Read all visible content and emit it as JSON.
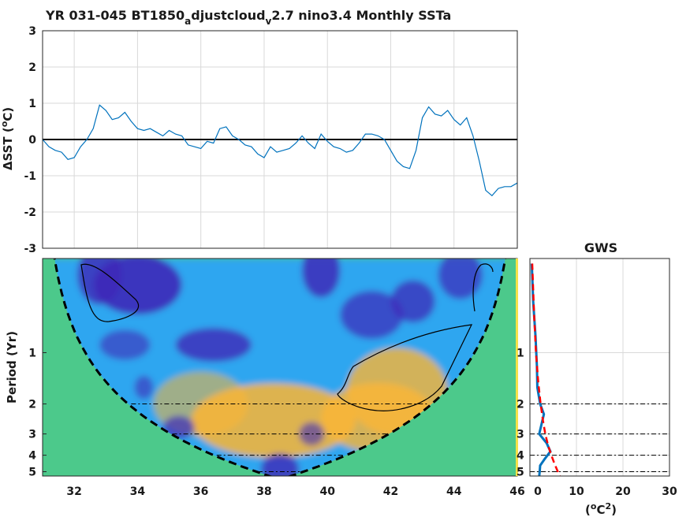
{
  "chart_data": [
    {
      "type": "line",
      "title_parts": [
        "YR 031-045 BT1850",
        "a",
        "djustcloud",
        "v",
        "2.7 nino3.4 Monthly SSTa"
      ],
      "ylabel_prefix": "ΔSST (",
      "ylabel_sup": "o",
      "ylabel_suffix": "C)",
      "xlim": [
        31,
        46
      ],
      "ylim": [
        -3,
        3
      ],
      "yticks": [
        3,
        2,
        1,
        0,
        -1,
        -2,
        -3
      ],
      "grid": true,
      "zero_line": true,
      "series": [
        {
          "color": "#0072BD",
          "x": [
            31.0,
            31.2,
            31.4,
            31.6,
            31.8,
            32.0,
            32.2,
            32.4,
            32.6,
            32.8,
            33.0,
            33.2,
            33.4,
            33.6,
            33.8,
            34.0,
            34.2,
            34.4,
            34.6,
            34.8,
            35.0,
            35.2,
            35.4,
            35.6,
            35.8,
            36.0,
            36.2,
            36.4,
            36.6,
            36.8,
            37.0,
            37.2,
            37.4,
            37.6,
            37.8,
            38.0,
            38.2,
            38.4,
            38.6,
            38.8,
            39.0,
            39.2,
            39.4,
            39.6,
            39.8,
            40.0,
            40.2,
            40.4,
            40.6,
            40.8,
            41.0,
            41.2,
            41.4,
            41.6,
            41.8,
            42.0,
            42.2,
            42.4,
            42.6,
            42.8,
            43.0,
            43.2,
            43.4,
            43.6,
            43.8,
            44.0,
            44.2,
            44.4,
            44.6,
            44.8,
            45.0,
            45.2,
            45.4,
            45.6,
            45.8,
            46.0
          ],
          "y": [
            0.0,
            -0.2,
            -0.3,
            -0.35,
            -0.55,
            -0.5,
            -0.2,
            0.0,
            0.3,
            0.95,
            0.8,
            0.55,
            0.6,
            0.75,
            0.5,
            0.3,
            0.25,
            0.3,
            0.2,
            0.1,
            0.25,
            0.15,
            0.1,
            -0.15,
            -0.2,
            -0.25,
            -0.05,
            -0.1,
            0.3,
            0.35,
            0.1,
            0.0,
            -0.15,
            -0.2,
            -0.4,
            -0.5,
            -0.2,
            -0.35,
            -0.3,
            -0.25,
            -0.1,
            0.1,
            -0.1,
            -0.25,
            0.15,
            -0.05,
            -0.2,
            -0.25,
            -0.35,
            -0.3,
            -0.1,
            0.15,
            0.15,
            0.1,
            0.0,
            -0.3,
            -0.6,
            -0.75,
            -0.8,
            -0.3,
            0.6,
            0.9,
            0.7,
            0.65,
            0.8,
            0.55,
            0.4,
            0.6,
            0.1,
            -0.6,
            -1.4,
            -1.55,
            -1.35,
            -1.3,
            -1.3,
            -1.2
          ]
        }
      ]
    },
    {
      "type": "heatmap",
      "ylabel": "Period (Yr)",
      "xlim": [
        31,
        46
      ],
      "xticks": [
        32,
        34,
        36,
        38,
        40,
        42,
        44,
        46
      ],
      "xtick_labels": [
        "32",
        "34",
        "36",
        "38",
        "40",
        "42",
        "44",
        "46"
      ],
      "yscale": "log2",
      "ylim_period": [
        0.28,
        5.3
      ],
      "yticks": [
        1,
        2,
        3,
        4,
        5
      ],
      "reference_periods": [
        2,
        3,
        4,
        5
      ],
      "colors": {
        "background": "#4cc98b",
        "low": "#3d29b8",
        "mid": "#2fa6f0",
        "high": "#fbb534"
      },
      "power_blobs": [
        {
          "x": 38.3,
          "p": 2.5,
          "sx": 2.6,
          "sp": 0.55,
          "v": 0.85
        },
        {
          "x": 42.2,
          "p": 1.7,
          "sx": 1.6,
          "sp": 0.7,
          "v": 0.8
        },
        {
          "x": 41.6,
          "p": 2.4,
          "sx": 1.8,
          "sp": 0.5,
          "v": 0.8
        },
        {
          "x": 36.0,
          "p": 2.0,
          "sx": 1.5,
          "sp": 0.45,
          "v": 0.55
        },
        {
          "x": 34.0,
          "p": 0.4,
          "sx": 1.4,
          "sp": 0.4,
          "v": -0.9
        },
        {
          "x": 32.8,
          "p": 0.35,
          "sx": 0.7,
          "sp": 0.4,
          "v": -0.8
        },
        {
          "x": 36.4,
          "p": 0.9,
          "sx": 1.2,
          "sp": 0.18,
          "v": -0.8
        },
        {
          "x": 33.6,
          "p": 0.9,
          "sx": 0.8,
          "sp": 0.15,
          "v": -0.6
        },
        {
          "x": 39.8,
          "p": 0.33,
          "sx": 0.6,
          "sp": 0.35,
          "v": -0.85
        },
        {
          "x": 41.4,
          "p": 0.6,
          "sx": 1.0,
          "sp": 0.3,
          "v": -0.7
        },
        {
          "x": 42.7,
          "p": 0.5,
          "sx": 0.7,
          "sp": 0.25,
          "v": -0.75
        },
        {
          "x": 44.2,
          "p": 0.35,
          "sx": 0.7,
          "sp": 0.3,
          "v": -0.7
        },
        {
          "x": 35.3,
          "p": 2.75,
          "sx": 0.5,
          "sp": 0.1,
          "v": -0.7
        },
        {
          "x": 39.5,
          "p": 3.0,
          "sx": 0.4,
          "sp": 0.1,
          "v": -0.6
        },
        {
          "x": 38.5,
          "p": 4.8,
          "sx": 0.6,
          "sp": 0.15,
          "v": -0.8
        },
        {
          "x": 34.2,
          "p": 1.6,
          "sx": 0.3,
          "sp": 0.1,
          "v": -0.6
        }
      ]
    },
    {
      "type": "line",
      "title": "GWS",
      "xlabel_prefix": "(",
      "xlabel_sup_o": "o",
      "xlabel_mid": "C",
      "xlabel_sup_2": "2",
      "xlabel_suffix": ")",
      "xlim": [
        0,
        30
      ],
      "xticks": [
        0,
        10,
        20,
        30
      ],
      "xtick_labels": [
        "0",
        "10",
        "20",
        "30"
      ],
      "yscale": "log2",
      "reference_periods": [
        2,
        3,
        4,
        5
      ],
      "grid": true,
      "series": [
        {
          "name": "gws",
          "color": "#0072BD",
          "style": "solid",
          "period": [
            0.3,
            0.5,
            0.8,
            1.2,
            1.6,
            2.0,
            2.3,
            2.7,
            3.0,
            3.4,
            3.8,
            4.2,
            4.6,
            5.0,
            5.3
          ],
          "power": [
            0.4,
            0.7,
            1.2,
            1.5,
            1.6,
            2.2,
            3.0,
            2.4,
            2.0,
            3.6,
            4.4,
            3.2,
            2.2,
            2.1,
            2.0
          ]
        },
        {
          "name": "significance",
          "color": "#ff0000",
          "style": "dashed",
          "period": [
            0.3,
            0.6,
            1.0,
            1.5,
            2.0,
            2.5,
            3.0,
            3.5,
            4.0,
            4.5,
            5.0,
            5.3
          ],
          "power": [
            0.5,
            0.9,
            1.3,
            1.8,
            2.3,
            2.8,
            3.3,
            3.9,
            4.6,
            5.3,
            6.0,
            6.4
          ]
        }
      ]
    }
  ]
}
